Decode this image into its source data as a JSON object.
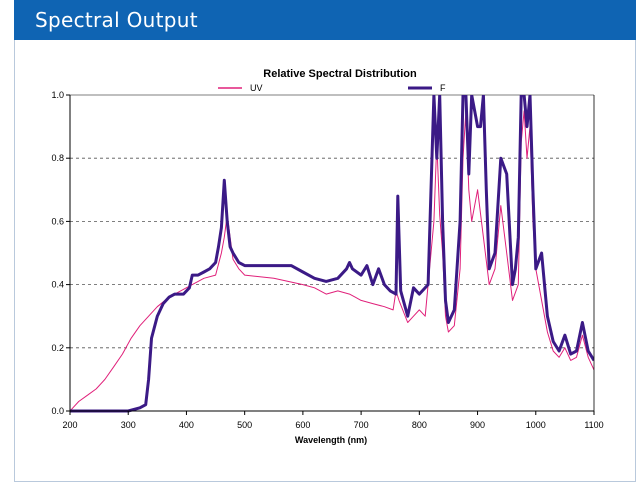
{
  "header": {
    "title": "Spectral Output"
  },
  "chart_data": {
    "type": "line",
    "title": "Relative Spectral Distribution",
    "xlabel": "Wavelength (nm)",
    "ylabel": "",
    "xlim": [
      200,
      1100
    ],
    "ylim": [
      0,
      1.0
    ],
    "x_ticks": [
      "200",
      "300",
      "400",
      "500",
      "600",
      "700",
      "800",
      "900",
      "1000",
      "1100"
    ],
    "y_ticks": [
      "0.0",
      "0.2",
      "0.4",
      "0.6",
      "0.8",
      "1.0"
    ],
    "grid": "horizontal dashed",
    "legend_position": "top-center",
    "series": [
      {
        "name": "UV",
        "color": "#e0207a",
        "points": [
          [
            200,
            0.0
          ],
          [
            205,
            0.01
          ],
          [
            215,
            0.03
          ],
          [
            230,
            0.05
          ],
          [
            245,
            0.07
          ],
          [
            260,
            0.1
          ],
          [
            275,
            0.14
          ],
          [
            290,
            0.18
          ],
          [
            305,
            0.23
          ],
          [
            320,
            0.27
          ],
          [
            335,
            0.3
          ],
          [
            350,
            0.33
          ],
          [
            370,
            0.36
          ],
          [
            390,
            0.38
          ],
          [
            410,
            0.4
          ],
          [
            430,
            0.42
          ],
          [
            450,
            0.43
          ],
          [
            460,
            0.5
          ],
          [
            465,
            0.55
          ],
          [
            470,
            0.62
          ],
          [
            475,
            0.55
          ],
          [
            480,
            0.48
          ],
          [
            490,
            0.45
          ],
          [
            500,
            0.43
          ],
          [
            550,
            0.42
          ],
          [
            600,
            0.4
          ],
          [
            620,
            0.39
          ],
          [
            640,
            0.37
          ],
          [
            660,
            0.38
          ],
          [
            680,
            0.37
          ],
          [
            690,
            0.36
          ],
          [
            700,
            0.35
          ],
          [
            720,
            0.34
          ],
          [
            740,
            0.33
          ],
          [
            755,
            0.32
          ],
          [
            760,
            0.38
          ],
          [
            765,
            0.35
          ],
          [
            780,
            0.28
          ],
          [
            790,
            0.3
          ],
          [
            800,
            0.32
          ],
          [
            810,
            0.3
          ],
          [
            820,
            0.5
          ],
          [
            825,
            0.6
          ],
          [
            830,
            0.85
          ],
          [
            835,
            0.62
          ],
          [
            840,
            0.5
          ],
          [
            845,
            0.3
          ],
          [
            850,
            0.25
          ],
          [
            860,
            0.27
          ],
          [
            870,
            0.45
          ],
          [
            875,
            0.8
          ],
          [
            880,
            0.95
          ],
          [
            885,
            0.7
          ],
          [
            890,
            0.6
          ],
          [
            900,
            0.7
          ],
          [
            910,
            0.55
          ],
          [
            920,
            0.4
          ],
          [
            930,
            0.45
          ],
          [
            940,
            0.65
          ],
          [
            950,
            0.5
          ],
          [
            960,
            0.35
          ],
          [
            970,
            0.4
          ],
          [
            975,
            0.85
          ],
          [
            980,
            0.95
          ],
          [
            985,
            0.8
          ],
          [
            990,
            0.9
          ],
          [
            995,
            0.6
          ],
          [
            1000,
            0.45
          ],
          [
            1010,
            0.35
          ],
          [
            1020,
            0.25
          ],
          [
            1030,
            0.19
          ],
          [
            1040,
            0.17
          ],
          [
            1050,
            0.2
          ],
          [
            1060,
            0.16
          ],
          [
            1070,
            0.17
          ],
          [
            1080,
            0.24
          ],
          [
            1090,
            0.17
          ],
          [
            1100,
            0.13
          ]
        ]
      },
      {
        "name": "F",
        "color": "#3b1a86",
        "points": [
          [
            200,
            0.0
          ],
          [
            300,
            0.0
          ],
          [
            320,
            0.01
          ],
          [
            330,
            0.02
          ],
          [
            335,
            0.1
          ],
          [
            340,
            0.23
          ],
          [
            350,
            0.3
          ],
          [
            360,
            0.34
          ],
          [
            370,
            0.36
          ],
          [
            380,
            0.37
          ],
          [
            395,
            0.37
          ],
          [
            405,
            0.39
          ],
          [
            410,
            0.43
          ],
          [
            420,
            0.43
          ],
          [
            430,
            0.44
          ],
          [
            440,
            0.45
          ],
          [
            450,
            0.47
          ],
          [
            455,
            0.52
          ],
          [
            460,
            0.58
          ],
          [
            465,
            0.73
          ],
          [
            470,
            0.6
          ],
          [
            475,
            0.52
          ],
          [
            480,
            0.5
          ],
          [
            490,
            0.47
          ],
          [
            500,
            0.46
          ],
          [
            550,
            0.46
          ],
          [
            580,
            0.46
          ],
          [
            600,
            0.44
          ],
          [
            620,
            0.42
          ],
          [
            640,
            0.41
          ],
          [
            660,
            0.42
          ],
          [
            675,
            0.45
          ],
          [
            680,
            0.47
          ],
          [
            685,
            0.45
          ],
          [
            700,
            0.43
          ],
          [
            710,
            0.46
          ],
          [
            720,
            0.4
          ],
          [
            730,
            0.45
          ],
          [
            740,
            0.4
          ],
          [
            750,
            0.38
          ],
          [
            760,
            0.37
          ],
          [
            763,
            0.68
          ],
          [
            768,
            0.38
          ],
          [
            780,
            0.3
          ],
          [
            790,
            0.39
          ],
          [
            800,
            0.37
          ],
          [
            815,
            0.4
          ],
          [
            820,
            0.7
          ],
          [
            825,
            1.0
          ],
          [
            830,
            0.8
          ],
          [
            835,
            1.0
          ],
          [
            840,
            0.6
          ],
          [
            845,
            0.35
          ],
          [
            850,
            0.28
          ],
          [
            860,
            0.32
          ],
          [
            870,
            0.6
          ],
          [
            875,
            1.0
          ],
          [
            880,
            1.0
          ],
          [
            885,
            0.75
          ],
          [
            890,
            1.0
          ],
          [
            900,
            0.9
          ],
          [
            905,
            0.9
          ],
          [
            910,
            1.0
          ],
          [
            915,
            0.7
          ],
          [
            920,
            0.45
          ],
          [
            930,
            0.5
          ],
          [
            940,
            0.8
          ],
          [
            950,
            0.75
          ],
          [
            960,
            0.4
          ],
          [
            965,
            0.45
          ],
          [
            970,
            0.55
          ],
          [
            975,
            1.0
          ],
          [
            980,
            1.0
          ],
          [
            985,
            0.9
          ],
          [
            990,
            1.0
          ],
          [
            995,
            0.7
          ],
          [
            1000,
            0.45
          ],
          [
            1010,
            0.5
          ],
          [
            1020,
            0.3
          ],
          [
            1030,
            0.22
          ],
          [
            1040,
            0.19
          ],
          [
            1050,
            0.24
          ],
          [
            1060,
            0.18
          ],
          [
            1070,
            0.19
          ],
          [
            1080,
            0.28
          ],
          [
            1090,
            0.19
          ],
          [
            1100,
            0.16
          ]
        ]
      }
    ]
  }
}
